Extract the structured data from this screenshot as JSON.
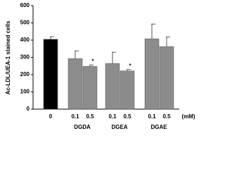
{
  "chart_data": {
    "type": "bar",
    "y_label": "Ac-LDL/UEA-1 stained cells",
    "categories": [
      "0",
      "0.1",
      "0.5",
      "0.1",
      "0.5",
      "0.1",
      "0.5"
    ],
    "values": [
      405,
      293,
      248,
      265,
      222,
      408,
      363
    ],
    "errors": [
      15,
      45,
      8,
      65,
      8,
      85,
      55
    ],
    "colors": [
      "#000000",
      "#8c8c8c",
      "#8c8c8c",
      "#8c8c8c",
      "#8c8c8c",
      "#8c8c8c",
      "#8c8c8c"
    ],
    "value_annotations": [
      null,
      null,
      "*",
      null,
      "*",
      null,
      null
    ],
    "x_unit": "(mM)",
    "groups": [
      "DGDA",
      "DGEA",
      "DGAE"
    ],
    "ylim": [
      0,
      600
    ],
    "yticks": [
      0,
      100,
      200,
      300,
      400,
      500,
      600
    ]
  }
}
